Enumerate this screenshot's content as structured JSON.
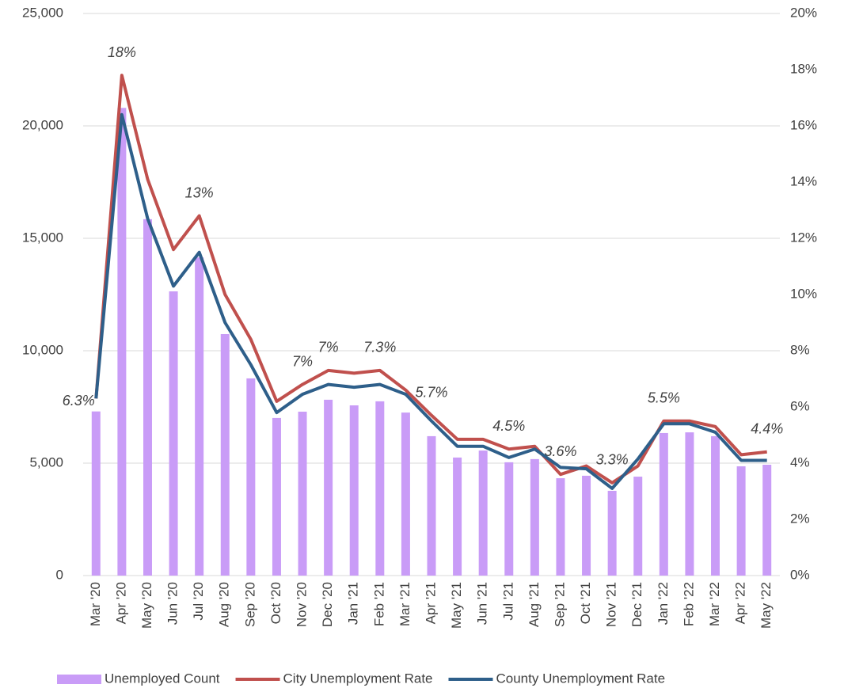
{
  "chart_data": {
    "type": "bar_line",
    "categories": [
      "Mar '20",
      "Apr '20",
      "May '20",
      "Jun '20",
      "Jul '20",
      "Aug '20",
      "Sep '20",
      "Oct '20",
      "Nov '20",
      "Dec '20",
      "Jan '21",
      "Feb '21",
      "Mar '21",
      "Apr '21",
      "May '21",
      "Jun '21",
      "Jul '21",
      "Aug '21",
      "Sep '21",
      "Oct '21",
      "Nov '21",
      "Dec '21",
      "Jan '22",
      "Feb '22",
      "Mar '22",
      "Apr '22",
      "May '22"
    ],
    "series": [
      {
        "name": "Unemployed Count",
        "type": "bar",
        "color": "#c99cf7",
        "values": [
          7300,
          20800,
          15850,
          12640,
          14150,
          10740,
          8770,
          7010,
          7290,
          7820,
          7570,
          7750,
          7250,
          6200,
          5250,
          5560,
          5040,
          5180,
          4330,
          4440,
          3770,
          4400,
          6340,
          6370,
          6200,
          4860,
          4930
        ]
      },
      {
        "name": "City Unemployment Rate",
        "type": "line",
        "axis": "y2",
        "color": "#c0504d",
        "values": [
          6.3,
          17.8,
          14.1,
          11.6,
          12.8,
          10.0,
          8.4,
          6.2,
          6.8,
          7.3,
          7.2,
          7.3,
          6.6,
          5.7,
          4.85,
          4.85,
          4.5,
          4.6,
          3.6,
          3.9,
          3.3,
          3.9,
          5.5,
          5.5,
          5.3,
          4.3,
          4.4
        ],
        "value_labels": [
          "6.3%",
          "18%",
          null,
          null,
          "13%",
          null,
          null,
          null,
          "7%",
          "7%",
          null,
          "7.3%",
          null,
          "5.7%",
          null,
          null,
          "4.5%",
          null,
          "3.6%",
          null,
          "3.3%",
          null,
          "5.5%",
          null,
          null,
          null,
          "4.4%"
        ]
      },
      {
        "name": "County Unemployment Rate",
        "type": "line",
        "axis": "y2",
        "color": "#2e5f8a",
        "values": [
          6.3,
          16.4,
          12.7,
          10.3,
          11.5,
          9.0,
          7.5,
          5.8,
          6.45,
          6.8,
          6.7,
          6.8,
          6.45,
          5.5,
          4.6,
          4.6,
          4.2,
          4.5,
          3.85,
          3.8,
          3.1,
          4.15,
          5.4,
          5.4,
          5.1,
          4.1,
          4.1
        ]
      }
    ],
    "ylim": [
      0,
      25000
    ],
    "yticks": [
      0,
      {
        "value": 5000,
        "label": "5,000"
      },
      {
        "value": 10000,
        "label": "10,000"
      },
      {
        "value": 15000,
        "label": "15,000"
      },
      {
        "value": 20000,
        "label": "20,000"
      },
      {
        "value": 25000,
        "label": "25,000"
      }
    ],
    "y2lim": [
      0,
      20
    ],
    "y2ticks": [
      {
        "value": 0,
        "label": "0%"
      },
      {
        "value": 2,
        "label": "2%"
      },
      {
        "value": 4,
        "label": "4%"
      },
      {
        "value": 6,
        "label": "6%"
      },
      {
        "value": 8,
        "label": "8%"
      },
      {
        "value": 10,
        "label": "10%"
      },
      {
        "value": 12,
        "label": "12%"
      },
      {
        "value": 14,
        "label": "14%"
      },
      {
        "value": 16,
        "label": "16%"
      },
      {
        "value": 18,
        "label": "18%"
      },
      {
        "value": 20,
        "label": "20%"
      }
    ],
    "grid": true,
    "legend": "bottom"
  }
}
